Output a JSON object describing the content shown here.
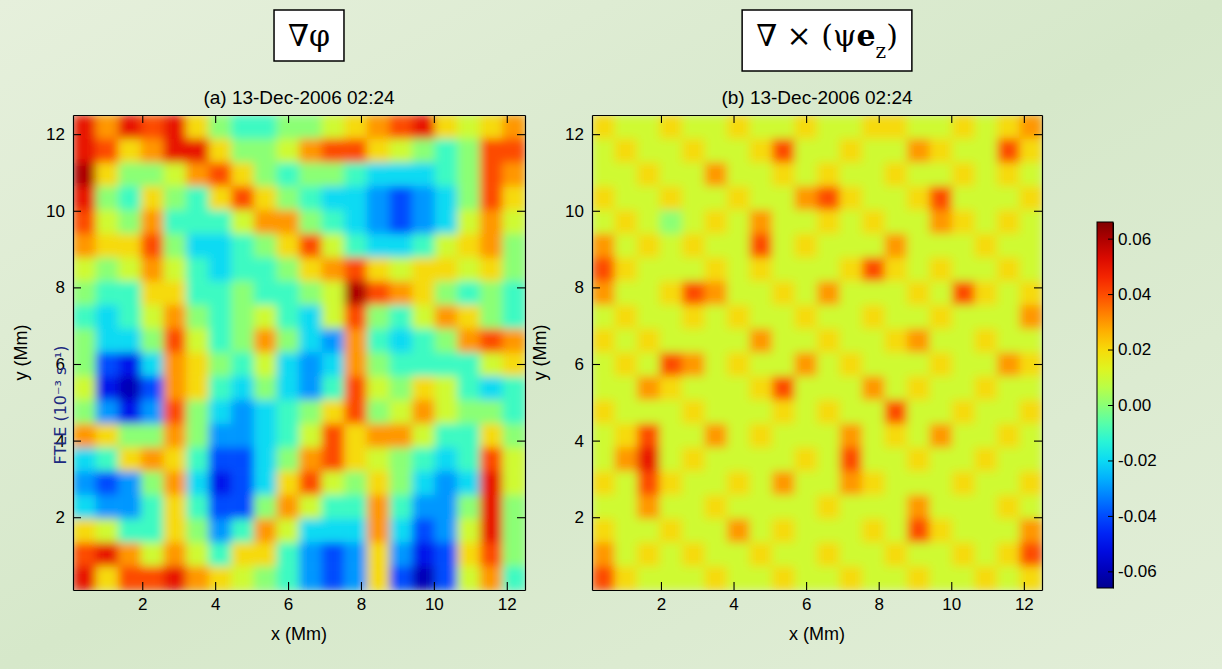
{
  "chart_data": [
    {
      "type": "heatmap",
      "label": {
        "text": "∇φ"
      },
      "title": "(a) 13-Dec-2006 02:24",
      "x_label": "x (Mm)",
      "y_label": "y (Mm)",
      "xlim": [
        0.1,
        12.5
      ],
      "ylim": [
        0.1,
        12.5
      ],
      "xticks": [
        2,
        4,
        6,
        8,
        10,
        12
      ],
      "yticks": [
        2,
        4,
        6,
        8,
        10,
        12
      ],
      "zlim": [
        -0.066,
        0.066
      ],
      "cells": [
        [
          0.05,
          0.03,
          0.05,
          0.04,
          0.05,
          0.02,
          0.0,
          -0.01,
          -0.01,
          0.0,
          0.0,
          0.01,
          0.02,
          0.03,
          0.04,
          0.05,
          0.02,
          0.01,
          0.02,
          0.03
        ],
        [
          0.05,
          0.04,
          0.02,
          0.03,
          0.05,
          0.05,
          0.02,
          0.0,
          0.0,
          0.01,
          0.03,
          0.04,
          0.04,
          0.02,
          0.01,
          0.0,
          -0.01,
          0.0,
          0.04,
          0.04
        ],
        [
          0.06,
          0.02,
          0.0,
          0.0,
          0.01,
          0.03,
          0.04,
          0.02,
          0.0,
          -0.01,
          0.0,
          0.0,
          -0.01,
          -0.02,
          -0.02,
          -0.02,
          -0.01,
          0.0,
          0.04,
          0.03
        ],
        [
          0.05,
          0.0,
          -0.01,
          0.02,
          0.0,
          -0.01,
          0.02,
          0.04,
          0.02,
          0.0,
          -0.01,
          -0.02,
          -0.02,
          -0.03,
          -0.04,
          -0.03,
          -0.02,
          0.0,
          0.04,
          0.02
        ],
        [
          0.04,
          0.01,
          0.0,
          0.03,
          -0.01,
          -0.01,
          -0.01,
          0.01,
          0.03,
          0.03,
          0.0,
          -0.01,
          -0.02,
          -0.03,
          -0.04,
          -0.03,
          -0.02,
          0.01,
          0.03,
          0.01
        ],
        [
          0.03,
          0.02,
          0.02,
          0.04,
          0.0,
          -0.02,
          -0.02,
          -0.01,
          0.0,
          0.02,
          0.04,
          0.01,
          -0.01,
          -0.02,
          -0.02,
          -0.01,
          0.01,
          0.02,
          0.03,
          0.0
        ],
        [
          0.01,
          0.0,
          0.01,
          0.03,
          0.01,
          -0.01,
          -0.02,
          -0.01,
          -0.01,
          0.0,
          0.02,
          0.03,
          0.04,
          0.02,
          0.01,
          0.02,
          0.02,
          0.01,
          0.02,
          0.0
        ],
        [
          0.0,
          -0.01,
          -0.01,
          0.02,
          0.02,
          -0.01,
          -0.01,
          0.0,
          -0.01,
          -0.01,
          0.0,
          0.01,
          0.06,
          0.04,
          0.03,
          0.02,
          0.0,
          -0.01,
          0.0,
          -0.01
        ],
        [
          -0.01,
          -0.02,
          -0.01,
          0.01,
          0.03,
          0.0,
          -0.01,
          0.0,
          0.01,
          -0.01,
          -0.02,
          0.01,
          0.04,
          0.0,
          -0.01,
          0.01,
          0.03,
          0.02,
          0.0,
          -0.01
        ],
        [
          0.0,
          -0.02,
          -0.02,
          0.0,
          0.04,
          0.01,
          -0.01,
          0.0,
          0.03,
          0.0,
          -0.02,
          -0.03,
          0.03,
          -0.01,
          -0.02,
          -0.01,
          0.0,
          0.03,
          0.04,
          0.03
        ],
        [
          0.0,
          -0.04,
          -0.05,
          -0.02,
          0.03,
          0.02,
          0.0,
          -0.01,
          0.01,
          -0.02,
          -0.03,
          -0.02,
          0.03,
          0.0,
          -0.01,
          -0.01,
          -0.01,
          -0.01,
          0.01,
          0.02
        ],
        [
          0.01,
          -0.05,
          -0.06,
          -0.04,
          0.03,
          0.02,
          -0.01,
          -0.02,
          0.0,
          -0.02,
          -0.03,
          -0.01,
          0.04,
          0.01,
          0.0,
          0.02,
          0.01,
          -0.01,
          -0.02,
          -0.01
        ],
        [
          0.0,
          -0.03,
          -0.05,
          -0.03,
          0.04,
          0.0,
          -0.02,
          -0.03,
          -0.02,
          -0.01,
          0.0,
          0.02,
          0.04,
          0.0,
          0.01,
          0.03,
          0.01,
          0.0,
          0.0,
          -0.01
        ],
        [
          0.03,
          0.02,
          0.0,
          0.0,
          0.03,
          0.0,
          -0.03,
          -0.03,
          -0.02,
          -0.01,
          0.01,
          0.04,
          0.02,
          0.03,
          0.03,
          0.01,
          -0.01,
          -0.01,
          0.02,
          0.0
        ],
        [
          -0.02,
          -0.01,
          0.02,
          0.03,
          0.02,
          -0.01,
          -0.04,
          -0.04,
          -0.02,
          0.0,
          0.03,
          0.04,
          0.02,
          0.01,
          0.0,
          -0.01,
          -0.02,
          -0.01,
          0.04,
          0.01
        ],
        [
          -0.03,
          -0.04,
          -0.03,
          0.0,
          0.03,
          -0.02,
          -0.05,
          -0.04,
          -0.02,
          0.02,
          0.04,
          0.01,
          0.0,
          0.02,
          0.0,
          -0.02,
          -0.03,
          -0.02,
          0.05,
          0.01
        ],
        [
          -0.02,
          -0.03,
          -0.03,
          -0.01,
          0.02,
          -0.01,
          -0.04,
          -0.04,
          0.0,
          0.03,
          0.01,
          -0.01,
          -0.01,
          0.03,
          -0.01,
          -0.03,
          -0.03,
          0.0,
          0.05,
          0.0
        ],
        [
          0.02,
          0.01,
          -0.01,
          -0.01,
          0.02,
          0.0,
          -0.03,
          -0.01,
          0.03,
          0.01,
          -0.02,
          -0.02,
          -0.02,
          0.03,
          -0.02,
          -0.04,
          -0.03,
          0.01,
          0.05,
          0.0
        ],
        [
          0.04,
          0.05,
          0.03,
          0.01,
          0.03,
          0.01,
          -0.01,
          0.02,
          0.02,
          -0.01,
          -0.03,
          -0.04,
          -0.03,
          0.02,
          -0.03,
          -0.05,
          -0.04,
          0.02,
          0.04,
          0.0
        ],
        [
          0.05,
          0.02,
          0.04,
          0.04,
          0.05,
          0.03,
          0.02,
          0.01,
          0.0,
          -0.01,
          -0.03,
          -0.04,
          -0.03,
          0.02,
          -0.04,
          -0.06,
          -0.04,
          0.01,
          0.03,
          -0.01
        ]
      ]
    },
    {
      "type": "heatmap",
      "label": {
        "text": "∇ × (ψ",
        "bold": "e",
        "sub": "z",
        "end": ")"
      },
      "title": "(b) 13-Dec-2006 02:24",
      "x_label": "x (Mm)",
      "y_label": "y (Mm)",
      "xlim": [
        0.1,
        12.5
      ],
      "ylim": [
        0.1,
        12.5
      ],
      "xticks": [
        2,
        4,
        6,
        8,
        10,
        12
      ],
      "yticks": [
        2,
        4,
        6,
        8,
        10,
        12
      ],
      "zlim": [
        -0.066,
        0.066
      ],
      "colorbar": {
        "label": "FTLE (10⁻³ s⁻¹)",
        "ticks": [
          -0.06,
          -0.04,
          -0.02,
          {
            "value": 0,
            "label": "0.00"
          },
          0.02,
          0.04,
          0.06
        ]
      },
      "cells": [
        [
          0.02,
          0.01,
          0.01,
          0.02,
          0.01,
          0.01,
          0.02,
          0.01,
          0.01,
          0.02,
          0.01,
          0.01,
          0.02,
          0.02,
          0.01,
          0.01,
          0.02,
          0.01,
          0.02,
          0.03
        ],
        [
          0.01,
          0.02,
          0.01,
          0.01,
          0.02,
          0.01,
          0.01,
          0.02,
          0.04,
          0.01,
          0.01,
          0.02,
          0.01,
          0.01,
          0.03,
          0.02,
          0.01,
          0.01,
          0.04,
          0.02
        ],
        [
          0.01,
          0.01,
          0.02,
          0.01,
          0.01,
          0.03,
          0.01,
          0.01,
          0.02,
          0.01,
          0.02,
          0.01,
          0.01,
          0.02,
          0.01,
          0.01,
          0.02,
          0.01,
          0.02,
          0.01
        ],
        [
          0.02,
          0.01,
          0.01,
          0.02,
          0.01,
          0.01,
          0.02,
          0.01,
          0.01,
          0.03,
          0.04,
          0.02,
          0.01,
          0.01,
          0.02,
          0.04,
          0.01,
          0.01,
          0.01,
          0.02
        ],
        [
          0.01,
          0.02,
          0.01,
          0.0,
          0.01,
          0.02,
          0.01,
          0.03,
          0.01,
          0.01,
          0.02,
          0.01,
          0.02,
          0.01,
          0.01,
          0.03,
          0.02,
          0.01,
          0.02,
          0.01
        ],
        [
          0.03,
          0.01,
          0.02,
          0.01,
          0.02,
          0.01,
          0.01,
          0.04,
          0.01,
          0.02,
          0.01,
          0.01,
          0.01,
          0.03,
          0.01,
          0.01,
          0.01,
          0.02,
          0.01,
          0.01
        ],
        [
          0.04,
          0.02,
          0.01,
          0.01,
          0.01,
          0.02,
          0.01,
          0.02,
          0.01,
          0.01,
          0.01,
          0.02,
          0.04,
          0.02,
          0.01,
          0.02,
          0.01,
          0.01,
          0.02,
          0.01
        ],
        [
          0.03,
          0.01,
          0.01,
          0.02,
          0.04,
          0.03,
          0.01,
          0.01,
          0.02,
          0.01,
          0.03,
          0.01,
          0.01,
          0.01,
          0.02,
          0.01,
          0.04,
          0.02,
          0.01,
          0.02
        ],
        [
          0.01,
          0.02,
          0.01,
          0.01,
          0.02,
          0.01,
          0.02,
          0.01,
          0.01,
          0.02,
          0.01,
          0.01,
          0.02,
          0.01,
          0.01,
          0.02,
          0.01,
          0.01,
          0.01,
          0.03
        ],
        [
          0.02,
          0.01,
          0.02,
          0.01,
          0.01,
          0.01,
          0.01,
          0.03,
          0.01,
          0.01,
          0.02,
          0.01,
          0.01,
          0.02,
          0.03,
          0.01,
          0.01,
          0.02,
          0.01,
          0.01
        ],
        [
          0.01,
          0.02,
          0.01,
          0.04,
          0.03,
          0.01,
          0.02,
          0.01,
          0.01,
          0.03,
          0.01,
          0.02,
          0.01,
          0.01,
          0.01,
          0.02,
          0.01,
          0.01,
          0.03,
          0.02
        ],
        [
          0.01,
          0.01,
          0.03,
          0.02,
          0.01,
          0.01,
          0.01,
          0.02,
          0.04,
          0.01,
          0.01,
          0.01,
          0.03,
          0.01,
          0.02,
          0.01,
          0.01,
          0.02,
          0.01,
          0.01
        ],
        [
          0.02,
          0.01,
          0.01,
          0.01,
          0.02,
          0.01,
          0.01,
          0.01,
          0.02,
          0.01,
          0.02,
          0.01,
          0.01,
          0.04,
          0.01,
          0.01,
          0.02,
          0.01,
          0.01,
          0.02
        ],
        [
          0.01,
          0.02,
          0.04,
          0.01,
          0.01,
          0.03,
          0.01,
          0.02,
          0.01,
          0.01,
          0.01,
          0.03,
          0.01,
          0.02,
          0.01,
          0.03,
          0.01,
          0.01,
          0.02,
          0.01
        ],
        [
          0.01,
          0.03,
          0.05,
          0.01,
          0.02,
          0.01,
          0.01,
          0.01,
          0.01,
          0.02,
          0.01,
          0.04,
          0.01,
          0.01,
          0.02,
          0.01,
          0.01,
          0.02,
          0.01,
          0.01
        ],
        [
          0.02,
          0.01,
          0.04,
          0.02,
          0.01,
          0.01,
          0.02,
          0.01,
          0.03,
          0.01,
          0.01,
          0.03,
          0.02,
          0.01,
          0.01,
          0.01,
          0.02,
          0.01,
          0.01,
          0.02
        ],
        [
          0.01,
          0.01,
          0.03,
          0.01,
          0.01,
          0.02,
          0.01,
          0.01,
          0.01,
          0.01,
          0.02,
          0.01,
          0.01,
          0.01,
          0.03,
          0.01,
          0.01,
          0.01,
          0.02,
          0.01
        ],
        [
          0.02,
          0.01,
          0.01,
          0.02,
          0.01,
          0.01,
          0.03,
          0.01,
          0.02,
          0.01,
          0.01,
          0.01,
          0.02,
          0.01,
          0.04,
          0.02,
          0.01,
          0.01,
          0.01,
          0.03
        ],
        [
          0.03,
          0.01,
          0.02,
          0.01,
          0.02,
          0.01,
          0.01,
          0.02,
          0.01,
          0.01,
          0.02,
          0.01,
          0.01,
          0.02,
          0.01,
          0.01,
          0.02,
          0.01,
          0.02,
          0.04
        ],
        [
          0.04,
          0.02,
          0.01,
          0.01,
          0.01,
          0.02,
          0.01,
          0.01,
          0.02,
          0.01,
          0.01,
          0.02,
          0.01,
          0.01,
          0.02,
          0.01,
          0.01,
          0.02,
          0.01,
          0.02
        ]
      ]
    }
  ]
}
